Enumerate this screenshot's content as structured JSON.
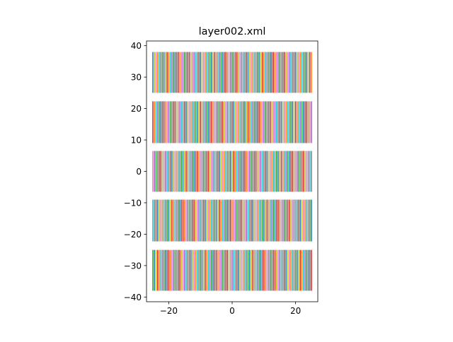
{
  "chart_data": {
    "type": "line",
    "title": "layer002.xml",
    "xlabel": "",
    "ylabel": "",
    "xlim": [
      -27,
      27
    ],
    "ylim": [
      -41.5,
      41.5
    ],
    "x_ticks": [
      -20,
      0,
      20
    ],
    "y_ticks": [
      -40,
      -30,
      -20,
      -10,
      0,
      10,
      20,
      30,
      40
    ],
    "x_tick_labels": [
      "−20",
      "0",
      "20"
    ],
    "y_tick_labels": [
      "−40",
      "−30",
      "−20",
      "−10",
      "0",
      "10",
      "20",
      "30",
      "40"
    ],
    "grid": false,
    "legend": "none",
    "color_cycle": [
      "#1f77b4",
      "#ff7f0e",
      "#2ca02c",
      "#d62728",
      "#9467bd",
      "#8c564b",
      "#e377c2",
      "#7f7f7f",
      "#bcbd22",
      "#17becf"
    ],
    "segment_pattern": "vertical line segments spanning each band, x spaced 0.5 apart from -25 to 25",
    "x_start": -25,
    "x_end": 25,
    "x_step": 0.5,
    "bands": [
      {
        "y": [
          25,
          38
        ]
      },
      {
        "y": [
          9,
          22.3
        ]
      },
      {
        "y": [
          -6.5,
          6.5
        ]
      },
      {
        "y": [
          -22.3,
          -9
        ]
      },
      {
        "y": [
          -38,
          -25
        ]
      }
    ]
  }
}
